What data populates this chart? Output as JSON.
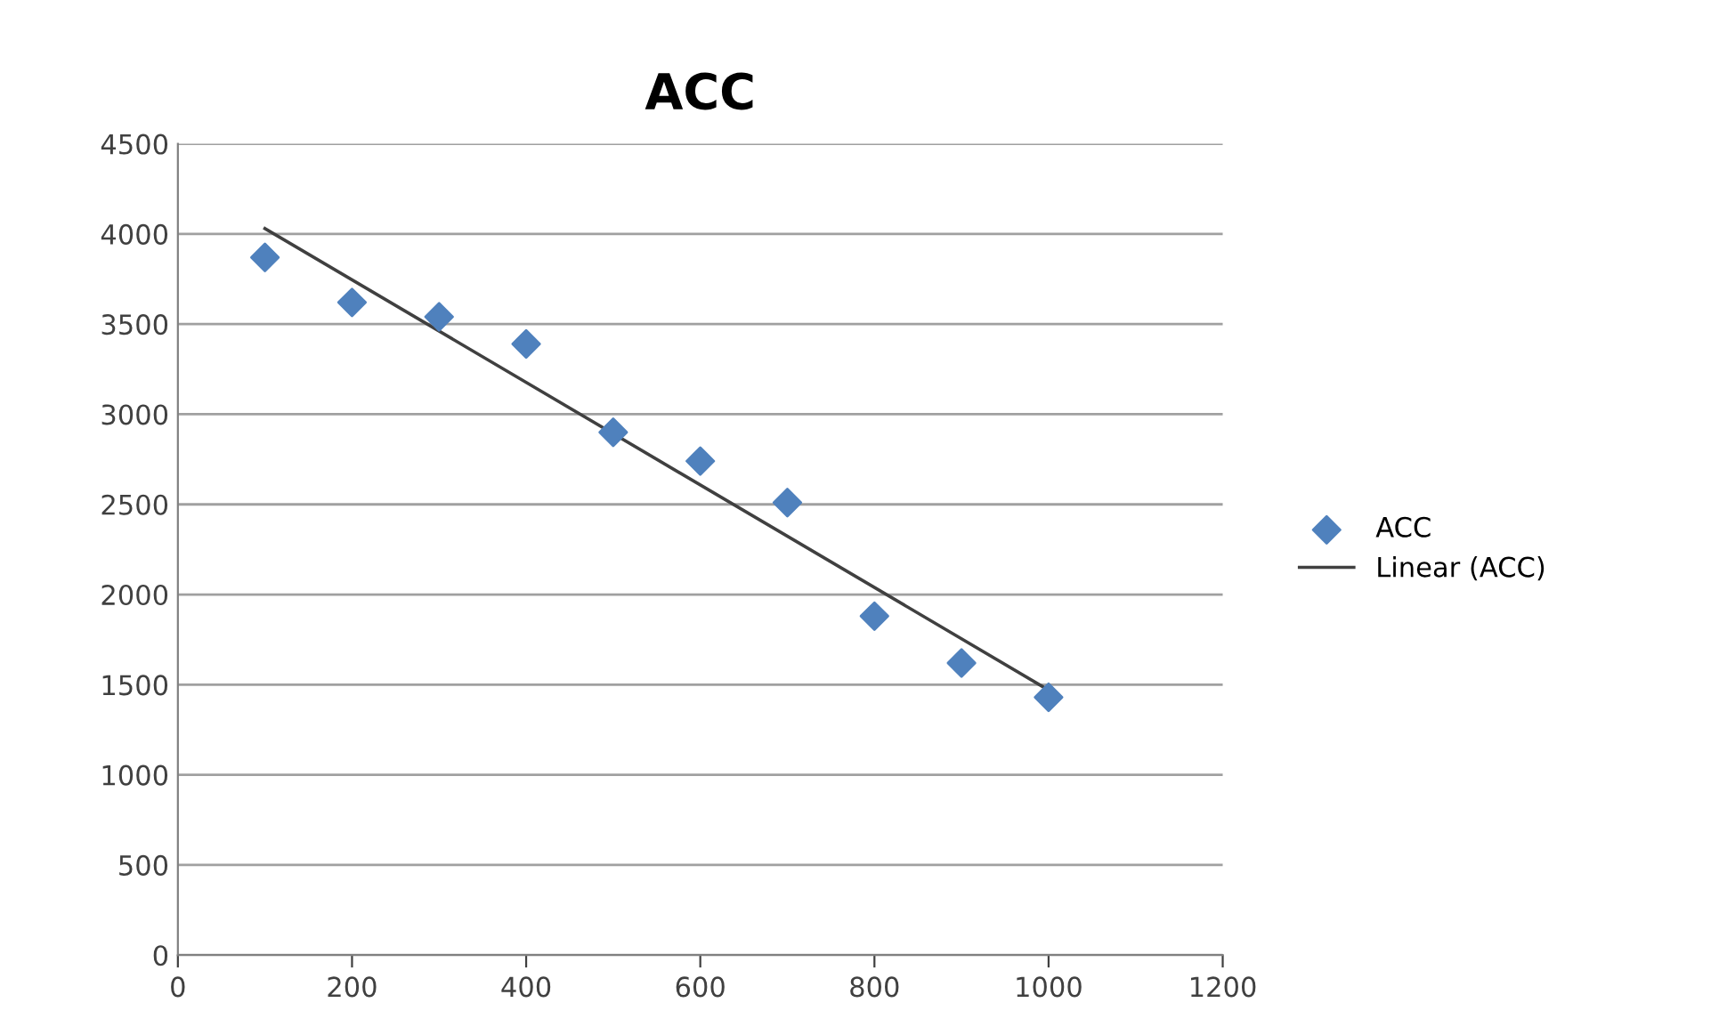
{
  "chart_data": {
    "type": "scatter",
    "title": "ACC",
    "x": [
      100,
      200,
      300,
      400,
      500,
      600,
      700,
      800,
      900,
      1000
    ],
    "series": [
      {
        "name": "ACC",
        "color": "#4f81bd",
        "marker": "diamond",
        "values": [
          3870,
          3620,
          3540,
          3390,
          2900,
          2740,
          2510,
          1880,
          1620,
          1430
        ]
      },
      {
        "name": "Linear (ACC)",
        "type": "line",
        "color": "#404040",
        "line_style": "solid",
        "marker": "none",
        "x": [
          100,
          1000
        ],
        "values": [
          4030,
          1470
        ]
      }
    ],
    "xlim": [
      0,
      1200
    ],
    "xticks": [
      0,
      200,
      400,
      600,
      800,
      1000,
      1200
    ],
    "ylim": [
      0,
      4500
    ],
    "yticks": [
      0,
      500,
      1000,
      1500,
      2000,
      2500,
      3000,
      3500,
      4000,
      4500
    ],
    "grid": "y",
    "legend": "right"
  }
}
